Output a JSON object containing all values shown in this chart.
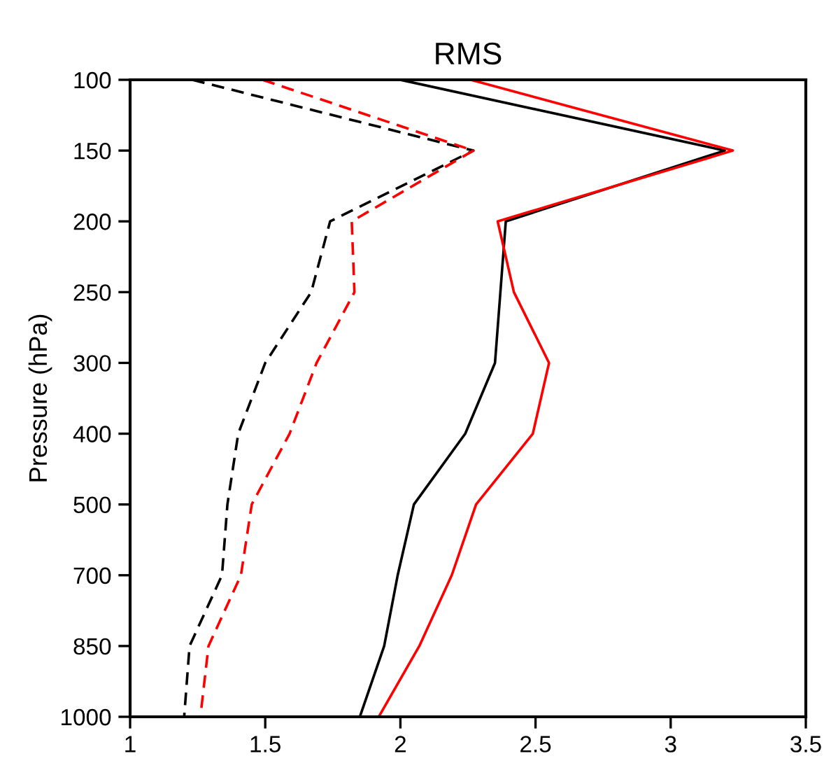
{
  "chart_data": {
    "type": "line",
    "orientation": "horizontal",
    "title": "RMS",
    "ylabel": "Pressure (hPa)",
    "categories": [
      "100",
      "150",
      "200",
      "250",
      "300",
      "400",
      "500",
      "700",
      "850",
      "1000"
    ],
    "series": [
      {
        "color": "#000000",
        "line_style": "dashed",
        "values": [
          1.23,
          2.27,
          1.74,
          1.67,
          1.5,
          1.4,
          1.36,
          1.34,
          1.22,
          1.2
        ]
      },
      {
        "color": "#ff0000",
        "line_style": "dashed",
        "values": [
          1.49,
          2.27,
          1.82,
          1.83,
          1.69,
          1.59,
          1.45,
          1.41,
          1.29,
          1.26
        ]
      },
      {
        "color": "#000000",
        "line_style": "solid",
        "values": [
          2.0,
          3.2,
          2.39,
          2.37,
          2.35,
          2.24,
          2.05,
          1.99,
          1.94,
          1.85
        ]
      },
      {
        "color": "#ff0000",
        "line_style": "solid",
        "values": [
          2.26,
          3.23,
          2.36,
          2.42,
          2.55,
          2.49,
          2.28,
          2.19,
          2.07,
          1.92
        ]
      }
    ],
    "xlim": [
      1,
      3.5
    ],
    "xticks": [
      1,
      1.5,
      2,
      2.5,
      3,
      3.5
    ],
    "grid": false,
    "legend": false
  }
}
